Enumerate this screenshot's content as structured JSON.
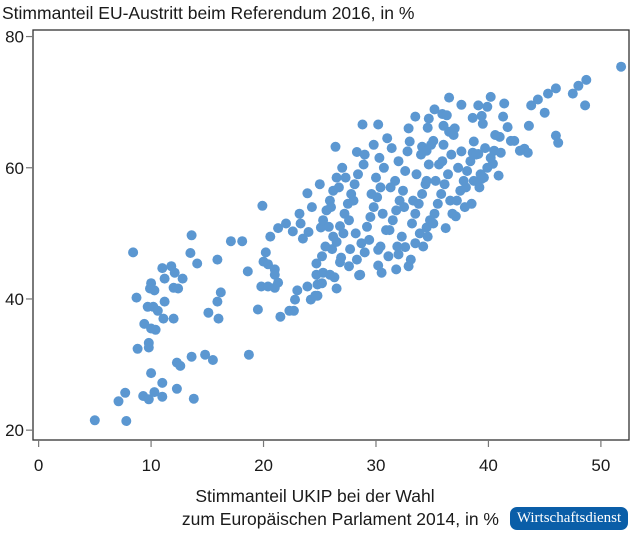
{
  "chart_data": {
    "type": "scatter",
    "title": "Stimmanteil EU-Austritt beim Referendum 2016, in %",
    "xlabel_line1": "Stimmanteil UKIP bei der Wahl",
    "xlabel_line2": "zum Europäischen Parlament 2014, in %",
    "xlim": [
      -0.5,
      52.5
    ],
    "ylim": [
      18.5,
      81
    ],
    "xticks": [
      0,
      10,
      20,
      30,
      40,
      50
    ],
    "yticks": [
      20,
      40,
      60,
      80
    ],
    "xtick_labels": [
      "0",
      "10",
      "20",
      "30",
      "40",
      "50"
    ],
    "ytick_labels": [
      "20",
      "40",
      "60",
      "80"
    ],
    "grid": false,
    "point_color": "#5b97d1",
    "points": [
      [
        13.6,
        49.7
      ],
      [
        17.1,
        48.8
      ],
      [
        18.1,
        48.8
      ],
      [
        8.4,
        47.1
      ],
      [
        13.5,
        47.0
      ],
      [
        14.1,
        45.4
      ],
      [
        15.9,
        46.0
      ],
      [
        18.6,
        44.2
      ],
      [
        20.2,
        47.1
      ],
      [
        11.0,
        44.7
      ],
      [
        11.8,
        45.0
      ],
      [
        12.1,
        44.0
      ],
      [
        11.2,
        43.1
      ],
      [
        12.8,
        43.1
      ],
      [
        10.0,
        42.4
      ],
      [
        10.3,
        41.3
      ],
      [
        9.9,
        41.6
      ],
      [
        12.0,
        41.7
      ],
      [
        12.4,
        41.6
      ],
      [
        8.7,
        40.2
      ],
      [
        11.2,
        39.6
      ],
      [
        9.7,
        38.8
      ],
      [
        10.2,
        38.8
      ],
      [
        10.6,
        38.2
      ],
      [
        9.4,
        36.2
      ],
      [
        11.1,
        37.0
      ],
      [
        12.0,
        37.0
      ],
      [
        10.0,
        35.5
      ],
      [
        10.4,
        35.3
      ],
      [
        9.8,
        33.3
      ],
      [
        9.8,
        32.6
      ],
      [
        8.8,
        32.4
      ],
      [
        16.2,
        41.0
      ],
      [
        15.9,
        39.6
      ],
      [
        15.1,
        37.9
      ],
      [
        16.0,
        37.0
      ],
      [
        19.5,
        38.4
      ],
      [
        19.8,
        41.9
      ],
      [
        18.7,
        31.5
      ],
      [
        13.6,
        31.2
      ],
      [
        14.8,
        31.5
      ],
      [
        15.5,
        30.7
      ],
      [
        12.3,
        30.3
      ],
      [
        12.6,
        29.8
      ],
      [
        10.0,
        28.7
      ],
      [
        11.0,
        27.2
      ],
      [
        7.7,
        25.7
      ],
      [
        7.1,
        24.4
      ],
      [
        9.3,
        25.2
      ],
      [
        9.8,
        24.7
      ],
      [
        10.3,
        25.8
      ],
      [
        11.0,
        25.1
      ],
      [
        12.3,
        26.3
      ],
      [
        13.8,
        24.8
      ],
      [
        5.0,
        21.5
      ],
      [
        7.8,
        21.4
      ],
      [
        22.6,
        50.3
      ],
      [
        23.3,
        51.5
      ],
      [
        24.0,
        50.2
      ],
      [
        23.5,
        49.2
      ],
      [
        25.1,
        50.9
      ],
      [
        26.8,
        51.1
      ],
      [
        20.0,
        45.7
      ],
      [
        20.4,
        45.3
      ],
      [
        21.0,
        44.5
      ],
      [
        21.0,
        43.7
      ],
      [
        21.3,
        42.5
      ],
      [
        20.4,
        41.9
      ],
      [
        21.0,
        41.7
      ],
      [
        21.5,
        37.3
      ],
      [
        22.7,
        38.2
      ],
      [
        22.8,
        39.9
      ],
      [
        23.0,
        41.3
      ],
      [
        23.9,
        41.9
      ],
      [
        24.2,
        39.9
      ],
      [
        24.8,
        40.5
      ],
      [
        24.8,
        42.2
      ],
      [
        24.7,
        43.7
      ],
      [
        24.7,
        45.4
      ],
      [
        25.2,
        46.5
      ],
      [
        25.3,
        44.0
      ],
      [
        25.9,
        43.7
      ],
      [
        26.3,
        43.3
      ],
      [
        26.5,
        41.6
      ],
      [
        26.8,
        45.6
      ],
      [
        26.1,
        47.6
      ],
      [
        26.5,
        48.7
      ],
      [
        27.6,
        45.0
      ],
      [
        28.5,
        43.6
      ],
      [
        27.7,
        47.6
      ],
      [
        28.3,
        46.0
      ],
      [
        29.0,
        47.1
      ],
      [
        30.2,
        45.1
      ],
      [
        30.4,
        48.0
      ],
      [
        32.0,
        46.8
      ],
      [
        32.6,
        47.9
      ],
      [
        33.5,
        48.5
      ],
      [
        32.9,
        45.0
      ],
      [
        34.5,
        50.9
      ],
      [
        51.8,
        75.4
      ],
      [
        48.7,
        73.4
      ],
      [
        48.0,
        72.5
      ],
      [
        47.5,
        71.3
      ],
      [
        48.6,
        69.5
      ],
      [
        46.0,
        72.1
      ],
      [
        45.3,
        71.3
      ],
      [
        44.4,
        70.4
      ],
      [
        43.8,
        69.5
      ],
      [
        45.0,
        68.4
      ],
      [
        43.6,
        66.4
      ],
      [
        46.0,
        64.9
      ],
      [
        46.2,
        63.8
      ],
      [
        43.2,
        62.9
      ],
      [
        43.5,
        62.3
      ],
      [
        42.8,
        62.6
      ],
      [
        42.3,
        64.1
      ],
      [
        42.0,
        64.1
      ],
      [
        41.0,
        64.7
      ],
      [
        41.7,
        66.2
      ],
      [
        41.4,
        69.8
      ],
      [
        41.3,
        67.8
      ],
      [
        40.2,
        70.8
      ],
      [
        39.9,
        69.3
      ],
      [
        39.1,
        69.5
      ],
      [
        39.4,
        67.9
      ],
      [
        39.5,
        66.7
      ],
      [
        38.6,
        67.6
      ],
      [
        37.6,
        69.6
      ],
      [
        36.5,
        70.7
      ],
      [
        35.2,
        68.9
      ],
      [
        35.9,
        68.2
      ],
      [
        34.7,
        67.5
      ],
      [
        33.5,
        67.8
      ],
      [
        32.9,
        66.0
      ],
      [
        34.6,
        66.1
      ],
      [
        36.0,
        66.4
      ],
      [
        36.5,
        65.5
      ],
      [
        35.1,
        64.1
      ],
      [
        34.1,
        63.2
      ],
      [
        34.5,
        62.6
      ],
      [
        40.5,
        62.6
      ],
      [
        41.1,
        62.3
      ],
      [
        40.9,
        58.8
      ],
      [
        40.4,
        60.6
      ],
      [
        39.1,
        62.1
      ],
      [
        38.6,
        62.3
      ],
      [
        39.4,
        58.3
      ],
      [
        38.7,
        58.0
      ],
      [
        19.9,
        54.2
      ],
      [
        23.9,
        56.1
      ],
      [
        26.4,
        63.2
      ],
      [
        28.8,
        66.6
      ],
      [
        30.2,
        66.6
      ],
      [
        28.3,
        62.4
      ],
      [
        37.1,
        52.6
      ],
      [
        38.5,
        54.5
      ],
      [
        28.6,
        43.7
      ],
      [
        26.9,
        46.3
      ],
      [
        25.2,
        42.4
      ],
      [
        24.6,
        40.5
      ],
      [
        22.3,
        38.2
      ],
      [
        25.3,
        52.0
      ],
      [
        25.6,
        53.5
      ],
      [
        25.9,
        55.0
      ],
      [
        26.2,
        56.5
      ],
      [
        26.0,
        54.0
      ],
      [
        26.7,
        57.0
      ],
      [
        25.8,
        51.0
      ],
      [
        25.5,
        48.0
      ],
      [
        26.2,
        49.5
      ],
      [
        27.2,
        53.0
      ],
      [
        27.5,
        54.5
      ],
      [
        27.8,
        56.0
      ],
      [
        28.1,
        57.5
      ],
      [
        28.4,
        59.0
      ],
      [
        28.0,
        55.0
      ],
      [
        27.6,
        52.0
      ],
      [
        28.2,
        50.0
      ],
      [
        28.7,
        48.5
      ],
      [
        29.2,
        51.0
      ],
      [
        29.5,
        52.5
      ],
      [
        29.8,
        54.0
      ],
      [
        30.1,
        55.5
      ],
      [
        30.4,
        57.0
      ],
      [
        30.0,
        58.5
      ],
      [
        30.7,
        60.0
      ],
      [
        30.3,
        61.5
      ],
      [
        29.6,
        56.0
      ],
      [
        30.6,
        53.0
      ],
      [
        29.4,
        49.0
      ],
      [
        30.2,
        47.5
      ],
      [
        31.2,
        50.5
      ],
      [
        31.5,
        52.0
      ],
      [
        31.8,
        53.5
      ],
      [
        32.1,
        55.0
      ],
      [
        32.4,
        56.5
      ],
      [
        31.7,
        58.0
      ],
      [
        32.6,
        59.5
      ],
      [
        32.0,
        61.0
      ],
      [
        32.8,
        62.5
      ],
      [
        31.3,
        57.0
      ],
      [
        32.5,
        54.0
      ],
      [
        31.9,
        48.0
      ],
      [
        32.3,
        49.5
      ],
      [
        33.0,
        64.0
      ],
      [
        31.4,
        63.0
      ],
      [
        33.2,
        51.5
      ],
      [
        33.5,
        53.0
      ],
      [
        33.8,
        54.5
      ],
      [
        34.1,
        56.0
      ],
      [
        34.4,
        57.5
      ],
      [
        33.6,
        59.0
      ],
      [
        34.7,
        60.5
      ],
      [
        34.0,
        62.0
      ],
      [
        34.9,
        63.5
      ],
      [
        33.3,
        55.0
      ],
      [
        34.5,
        58.0
      ],
      [
        34.8,
        52.0
      ],
      [
        33.9,
        50.0
      ],
      [
        34.2,
        48.0
      ],
      [
        35.2,
        53.0
      ],
      [
        35.5,
        54.5
      ],
      [
        35.8,
        56.0
      ],
      [
        36.1,
        57.5
      ],
      [
        36.4,
        59.0
      ],
      [
        35.6,
        60.5
      ],
      [
        36.7,
        62.0
      ],
      [
        36.0,
        63.5
      ],
      [
        36.9,
        65.0
      ],
      [
        35.3,
        58.0
      ],
      [
        36.6,
        55.0
      ],
      [
        35.9,
        61.0
      ],
      [
        37.0,
        66.0
      ],
      [
        36.3,
        68.0
      ],
      [
        37.2,
        55.0
      ],
      [
        37.5,
        56.5
      ],
      [
        37.8,
        58.0
      ],
      [
        38.1,
        59.5
      ],
      [
        38.4,
        61.0
      ],
      [
        37.6,
        62.5
      ],
      [
        38.7,
        64.0
      ],
      [
        38.0,
        57.0
      ],
      [
        37.3,
        60.0
      ],
      [
        38.9,
        62.0
      ],
      [
        36.8,
        53.0
      ],
      [
        37.9,
        54.0
      ],
      [
        39.2,
        57.0
      ],
      [
        39.6,
        58.5
      ],
      [
        39.9,
        60.0
      ],
      [
        40.2,
        61.5
      ],
      [
        39.7,
        63.0
      ],
      [
        40.6,
        65.0
      ],
      [
        39.3,
        59.0
      ],
      [
        29.0,
        62.0
      ],
      [
        29.8,
        63.5
      ],
      [
        31.0,
        64.5
      ],
      [
        27.0,
        60.0
      ],
      [
        27.3,
        58.5
      ],
      [
        28.9,
        60.5
      ],
      [
        30.9,
        50.5
      ],
      [
        31.1,
        46.5
      ],
      [
        33.1,
        46.0
      ],
      [
        35.1,
        51.5
      ],
      [
        36.2,
        50.8
      ],
      [
        34.6,
        49.5
      ],
      [
        30.5,
        44.0
      ],
      [
        31.8,
        44.5
      ],
      [
        27.1,
        50.0
      ],
      [
        24.3,
        54.0
      ],
      [
        23.2,
        53.0
      ],
      [
        25.0,
        57.5
      ],
      [
        26.5,
        58.5
      ],
      [
        22.0,
        51.5
      ],
      [
        21.3,
        50.8
      ],
      [
        20.6,
        49.5
      ]
    ]
  },
  "branding": {
    "logo_text": "Wirtschaftsdienst",
    "logo_color": "#0a5ea8"
  }
}
